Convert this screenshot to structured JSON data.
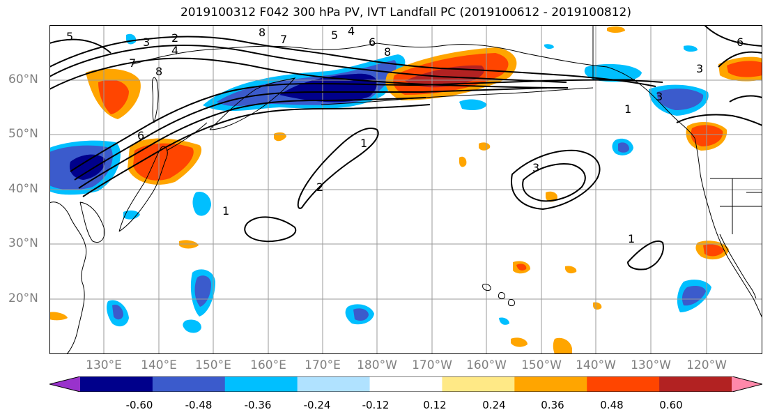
{
  "title": "2019100312 F042 300 hPa PV, IVT Landfall PC (2019100612 - 2019100812)",
  "lat_labels": [
    "60°N",
    "50°N",
    "40°N",
    "30°N",
    "20°N"
  ],
  "lon_labels": [
    "130°E",
    "140°E",
    "150°E",
    "160°E",
    "170°E",
    "180°W",
    "170°W",
    "160°W",
    "150°W",
    "140°W",
    "130°W",
    "120°W"
  ],
  "colorbar": {
    "tick_labels": [
      "-0.60",
      "-0.48",
      "-0.36",
      "-0.24",
      "-0.12",
      "0.12",
      "0.24",
      "0.36",
      "0.48",
      "0.60"
    ],
    "colors": [
      "#9932cc",
      "#00008b",
      "#3b5bcc",
      "#00bfff",
      "#b0e2ff",
      "#ffffff",
      "#ffe986",
      "#ffa500",
      "#ff4500",
      "#b22222",
      "#ff88aa"
    ]
  },
  "contour_labels": [
    "5",
    "3",
    "2",
    "4",
    "8",
    "7",
    "5",
    "4",
    "6",
    "8",
    "7",
    "8",
    "6",
    "1",
    "2",
    "1",
    "3",
    "1",
    "3",
    "1",
    "6",
    "3"
  ]
}
